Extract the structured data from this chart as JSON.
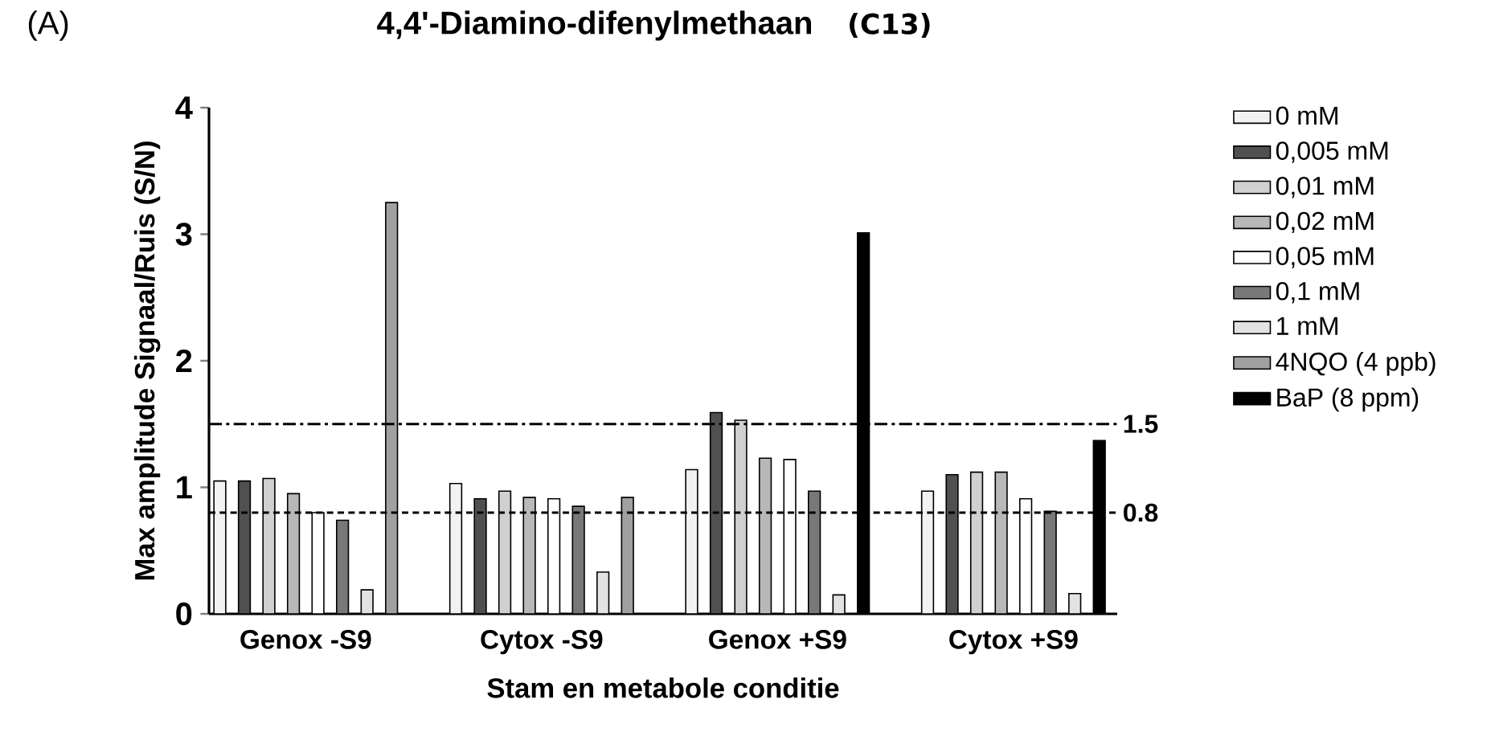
{
  "chart_data": {
    "type": "bar",
    "title": "4,4'-Diamino-difenylmethaan",
    "subtitle": "(C13)",
    "xlabel": "Stam en metabole conditie",
    "ylabel": "Max amplitude Signaal/Ruis (S/N)",
    "annotations": [
      "(A)"
    ],
    "categories": [
      "Genox -S9",
      "Cytox -S9",
      "Genox +S9",
      "Cytox +S9"
    ],
    "series": [
      {
        "name": "0 mM",
        "color": "#f2f2f2",
        "values": [
          1.05,
          1.03,
          1.14,
          0.97
        ]
      },
      {
        "name": "0,005 mM",
        "color": "#505050",
        "values": [
          1.05,
          0.91,
          1.59,
          1.1
        ]
      },
      {
        "name": "0,01 mM",
        "color": "#d0d0d0",
        "values": [
          1.07,
          0.97,
          1.53,
          1.12
        ]
      },
      {
        "name": "0,02 mM",
        "color": "#b8b8b8",
        "values": [
          0.95,
          0.92,
          1.23,
          1.12
        ]
      },
      {
        "name": "0,05 mM",
        "color": "#ffffff",
        "values": [
          0.8,
          0.91,
          1.22,
          0.91
        ]
      },
      {
        "name": "0,1 mM",
        "color": "#787878",
        "values": [
          0.74,
          0.85,
          0.97,
          0.81
        ]
      },
      {
        "name": "1 mM",
        "color": "#e2e2e2",
        "values": [
          0.19,
          0.33,
          0.15,
          0.16
        ]
      },
      {
        "name": "4NQO (4 ppb)",
        "color": "#a0a0a0",
        "values": [
          3.25,
          0.92,
          null,
          null
        ]
      },
      {
        "name": "BaP (8 ppm)",
        "color": "#000000",
        "values": [
          null,
          null,
          3.01,
          1.37
        ]
      }
    ],
    "ylim": [
      0,
      4
    ],
    "yticks": [
      0,
      1,
      2,
      3,
      4
    ],
    "ref_lines": [
      {
        "axis": "y",
        "value": 1.5,
        "label": "1.5",
        "line_style": "dashdot"
      },
      {
        "axis": "y",
        "value": 0.8,
        "label": "0.8",
        "line_style": "dashed"
      }
    ],
    "legend": "right",
    "grid": false
  }
}
